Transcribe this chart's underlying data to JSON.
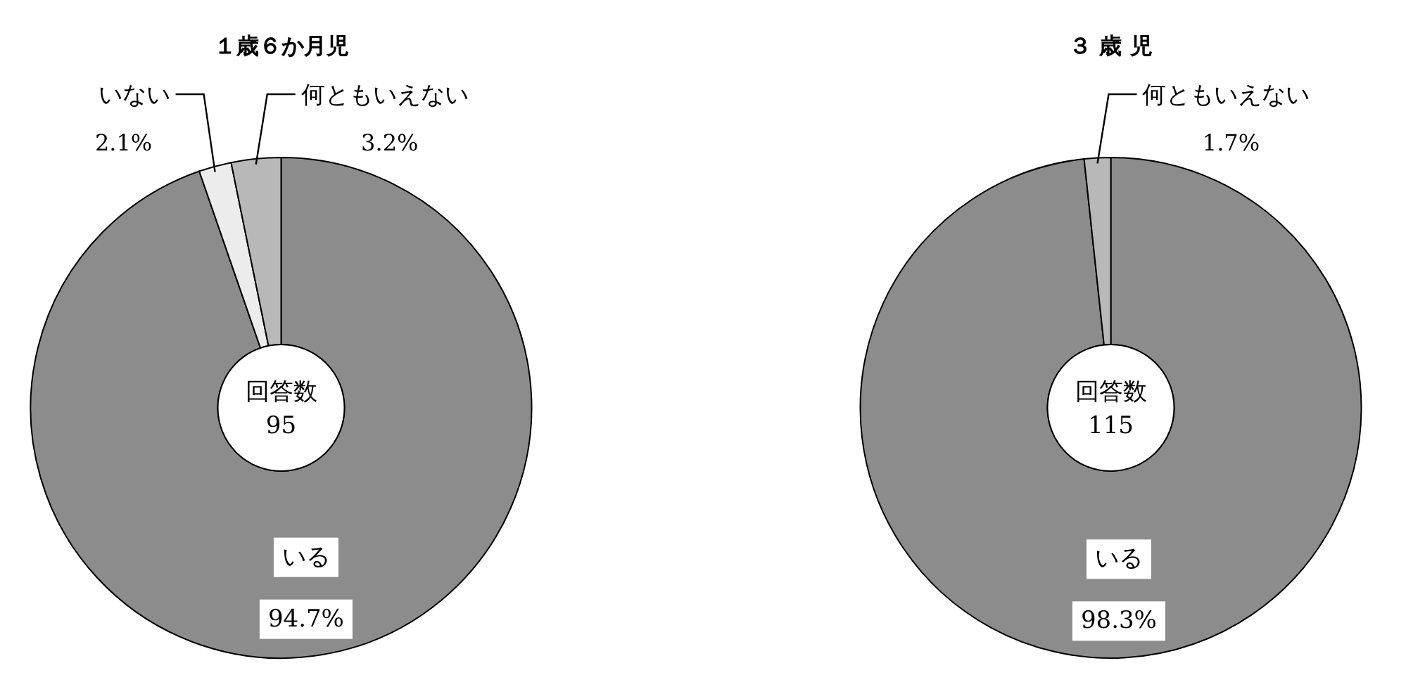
{
  "chart_data": [
    {
      "type": "donut",
      "title": "１歳６か月児",
      "categories": [
        "いる",
        "いない",
        "何ともいえない"
      ],
      "values": [
        94.7,
        2.1,
        3.2
      ],
      "colors": [
        "#8c8c8c",
        "#ececec",
        "#b8b8b8"
      ],
      "value_labels": [
        "94.7%",
        "2.1%",
        "3.2%"
      ],
      "annotations": [
        "回答数",
        "95"
      ]
    },
    {
      "type": "donut",
      "title": "３ 歳 児",
      "categories": [
        "いる",
        "何ともいえない"
      ],
      "values": [
        98.3,
        1.7
      ],
      "colors": [
        "#8c8c8c",
        "#b8b8b8"
      ],
      "value_labels": [
        "98.3%",
        "1.7%"
      ],
      "annotations": [
        "回答数",
        "115"
      ]
    }
  ]
}
